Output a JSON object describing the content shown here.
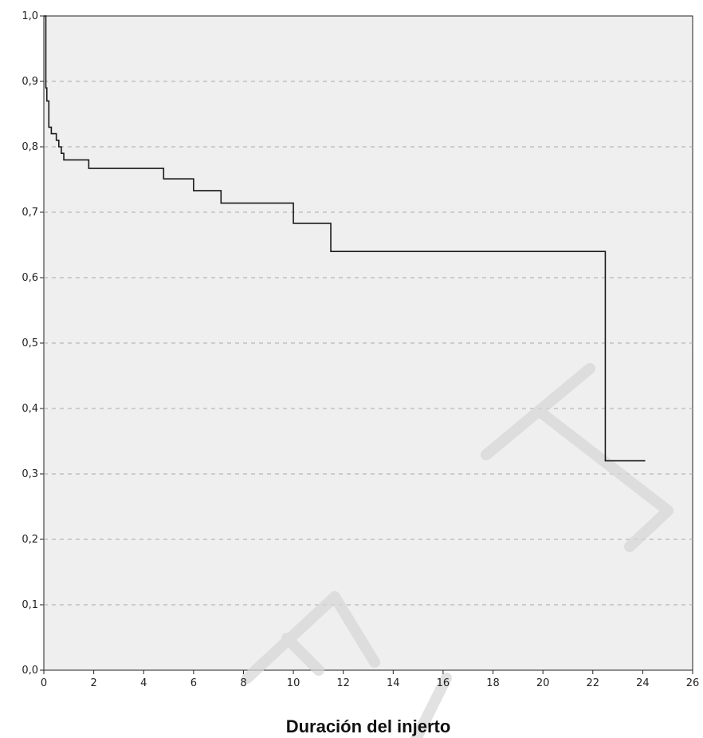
{
  "chart_data": {
    "type": "line",
    "step": true,
    "title": "",
    "xlabel": "Duración del injerto",
    "ylabel": "",
    "xlim": [
      0,
      26
    ],
    "ylim": [
      0,
      1
    ],
    "x_ticks": [
      0,
      2,
      4,
      6,
      8,
      10,
      12,
      14,
      16,
      18,
      20,
      22,
      24,
      26
    ],
    "y_ticks": [
      0,
      0.1,
      0.2,
      0.3,
      0.4,
      0.5,
      0.6,
      0.7,
      0.8,
      0.9,
      1.0
    ],
    "x_tick_labels": [
      "0",
      "2",
      "4",
      "6",
      "8",
      "10",
      "12",
      "14",
      "16",
      "18",
      "20",
      "22",
      "24",
      "26"
    ],
    "y_tick_labels": [
      "0,0",
      "0,1",
      "0,2",
      "0,3",
      "0,4",
      "0,5",
      "0,6",
      "0,7",
      "0,8",
      "0,9",
      "1,0"
    ],
    "grid": "horizontal dashed",
    "colors": {
      "plot_background": "#efefef",
      "line": "#1a1a1a",
      "grid": "#aaaaaa"
    },
    "series": [
      {
        "x": [
          0,
          0.08,
          0.12,
          0.2,
          0.3,
          0.5,
          0.6,
          0.7,
          0.8,
          1.8,
          4.8,
          6.0,
          7.1,
          10.0,
          11.5,
          22.5,
          24.1
        ],
        "y": [
          1.0,
          0.89,
          0.87,
          0.83,
          0.82,
          0.81,
          0.8,
          0.79,
          0.78,
          0.767,
          0.751,
          0.733,
          0.714,
          0.683,
          0.64,
          0.32,
          0.32
        ]
      }
    ]
  }
}
